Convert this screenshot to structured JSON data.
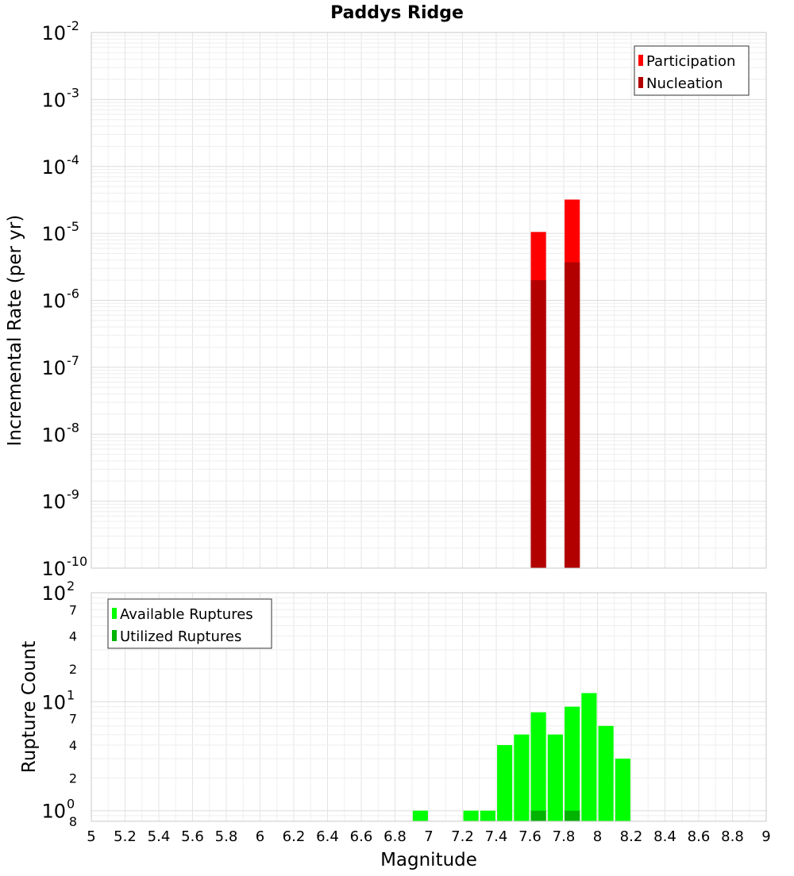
{
  "title": "Paddys Ridge",
  "colors": {
    "participation": "#ff0000",
    "nucleation": "#b20000",
    "available": "#00ff00",
    "utilized": "#00b300",
    "grid": "#e4e4e4",
    "frame": "#c8c8c8"
  },
  "chart_data": [
    {
      "type": "bar",
      "title": "Paddys Ridge",
      "xlabel": "Magnitude",
      "ylabel": "Incremental Rate (per yr)",
      "xlim": [
        5,
        9
      ],
      "ylim": [
        1e-10,
        0.01
      ],
      "yscale": "log",
      "grid": true,
      "legend_position": "top-right",
      "y_tick_labels": [
        {
          "base": "10",
          "exp": "-2",
          "value": 0.01
        },
        {
          "base": "10",
          "exp": "-3",
          "value": 0.001
        },
        {
          "base": "10",
          "exp": "-4",
          "value": 0.0001
        },
        {
          "base": "10",
          "exp": "-5",
          "value": 1e-05
        },
        {
          "base": "10",
          "exp": "-6",
          "value": 1e-06
        },
        {
          "base": "10",
          "exp": "-7",
          "value": 1e-07
        },
        {
          "base": "10",
          "exp": "-8",
          "value": 1e-08
        },
        {
          "base": "10",
          "exp": "-9",
          "value": 1e-09
        },
        {
          "base": "10",
          "exp": "-10",
          "value": 1e-10
        }
      ],
      "series": [
        {
          "name": "Participation",
          "x": [
            7.65,
            7.85
          ],
          "values": [
            1.05e-05,
            3.2e-05
          ]
        },
        {
          "name": "Nucleation",
          "x": [
            7.65,
            7.85
          ],
          "values": [
            2e-06,
            3.7e-06
          ]
        }
      ]
    },
    {
      "type": "bar",
      "xlabel": "Magnitude",
      "ylabel": "Rupture Count",
      "xlim": [
        5,
        9
      ],
      "ylim": [
        0.8,
        100
      ],
      "yscale": "log",
      "grid": true,
      "legend_position": "top-left",
      "x_ticks": [
        "5",
        "5.2",
        "5.4",
        "5.6",
        "5.8",
        "6",
        "6.2",
        "6.4",
        "6.6",
        "6.8",
        "7",
        "7.2",
        "7.4",
        "7.6",
        "7.8",
        "8",
        "8.2",
        "8.4",
        "8.6",
        "8.8",
        "9"
      ],
      "y_tick_labels": [
        {
          "base": "10",
          "exp": "2",
          "value": 100,
          "minor": false
        },
        {
          "label": "7",
          "value": 70,
          "minor": true
        },
        {
          "label": "4",
          "value": 40,
          "minor": true
        },
        {
          "label": "2",
          "value": 20,
          "minor": true
        },
        {
          "base": "10",
          "exp": "1",
          "value": 10,
          "minor": false
        },
        {
          "label": "7",
          "value": 7,
          "minor": true
        },
        {
          "label": "4",
          "value": 4,
          "minor": true
        },
        {
          "label": "2",
          "value": 2,
          "minor": true
        },
        {
          "base": "10",
          "exp": "0",
          "value": 1,
          "minor": false
        },
        {
          "label": "8",
          "value": 0.8,
          "minor": true
        }
      ],
      "series": [
        {
          "name": "Available Ruptures",
          "x": [
            6.95,
            7.25,
            7.35,
            7.45,
            7.55,
            7.65,
            7.75,
            7.85,
            7.95,
            8.05,
            8.15
          ],
          "values": [
            1,
            1,
            1,
            4,
            5,
            8,
            5,
            9,
            12,
            6,
            3
          ]
        },
        {
          "name": "Utilized Ruptures",
          "x": [
            7.65,
            7.85
          ],
          "values": [
            1,
            1
          ]
        }
      ]
    }
  ]
}
